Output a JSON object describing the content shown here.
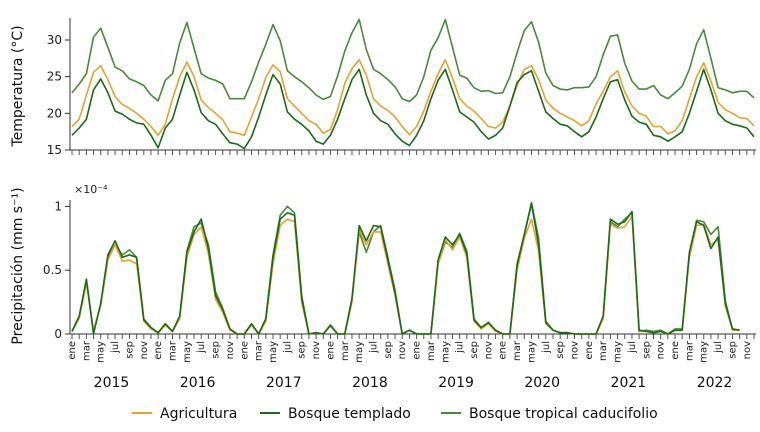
{
  "chart_data": [
    {
      "type": "line",
      "panel": "top",
      "ylabel": "Temperatura (°C)",
      "ylim": [
        15,
        33
      ],
      "yticks": [
        15,
        20,
        25,
        30
      ],
      "x_start": "ene 2015",
      "x_step": "month",
      "series": [
        {
          "name": "Agricultura",
          "color": "#e8a230",
          "values": [
            18.2,
            19.2,
            22.5,
            25.6,
            26.5,
            24.6,
            22.3,
            21.2,
            20.7,
            20.0,
            19.2,
            18.2,
            17.0,
            18.5,
            22.0,
            25.0,
            27.0,
            25.0,
            21.8,
            20.8,
            20.0,
            19.1,
            17.5,
            17.3,
            17.0,
            19.5,
            22.0,
            24.9,
            26.6,
            25.7,
            22.0,
            21.0,
            20.0,
            19.0,
            18.5,
            17.3,
            17.8,
            20.5,
            24.1,
            26.1,
            27.3,
            25.2,
            22.0,
            21.0,
            20.4,
            19.5,
            18.2,
            17.1,
            18.2,
            20.3,
            23.0,
            25.4,
            27.3,
            24.8,
            22.0,
            21.0,
            20.3,
            19.3,
            18.2,
            18.0,
            18.8,
            21.0,
            23.8,
            26.0,
            26.5,
            24.6,
            21.8,
            20.7,
            20.0,
            19.5,
            19.0,
            18.3,
            19.0,
            21.3,
            23.0,
            25.0,
            25.8,
            22.9,
            21.0,
            20.0,
            19.6,
            18.2,
            18.2,
            17.2,
            17.6,
            19.0,
            22.0,
            25.0,
            26.9,
            24.4,
            21.5,
            20.5,
            20.0,
            19.4,
            19.3,
            18.3
          ]
        },
        {
          "name": "Bosque templado",
          "color": "#1b6b1b",
          "values": [
            17.0,
            18.0,
            19.2,
            23.2,
            24.7,
            22.8,
            20.3,
            19.9,
            19.2,
            18.7,
            18.5,
            17.0,
            15.3,
            18.0,
            19.2,
            22.5,
            25.6,
            23.2,
            20.1,
            19.0,
            18.5,
            17.2,
            16.0,
            15.8,
            15.2,
            16.8,
            19.5,
            22.5,
            25.3,
            24.0,
            20.2,
            19.2,
            18.5,
            17.6,
            16.2,
            15.8,
            17.0,
            19.2,
            22.0,
            24.6,
            26.0,
            22.5,
            20.0,
            19.0,
            18.5,
            17.2,
            16.2,
            15.6,
            17.0,
            19.0,
            22.0,
            24.5,
            26.0,
            23.2,
            20.2,
            19.5,
            18.8,
            17.5,
            16.5,
            17.0,
            18.0,
            21.0,
            24.2,
            25.3,
            25.8,
            23.0,
            20.2,
            19.3,
            18.5,
            18.3,
            17.5,
            16.8,
            17.5,
            19.5,
            22.0,
            24.3,
            24.6,
            21.8,
            19.6,
            18.8,
            18.5,
            17.0,
            16.8,
            16.2,
            16.8,
            17.5,
            20.0,
            23.0,
            26.0,
            23.2,
            20.0,
            19.0,
            18.5,
            18.3,
            18.0,
            16.8
          ]
        },
        {
          "name": "Bosque tropical caducifolio",
          "color": "#4a8a3c",
          "values": [
            22.8,
            24.0,
            25.4,
            30.4,
            31.6,
            29.0,
            26.3,
            25.8,
            24.7,
            24.3,
            23.8,
            22.5,
            21.7,
            24.5,
            25.4,
            29.6,
            32.4,
            28.9,
            25.4,
            24.8,
            24.5,
            24.0,
            22.0,
            22.0,
            22.0,
            24.3,
            27.0,
            29.4,
            32.1,
            29.9,
            25.8,
            25.0,
            24.3,
            23.5,
            22.5,
            21.9,
            22.3,
            25.1,
            28.5,
            31.0,
            32.8,
            28.7,
            26.0,
            25.4,
            24.6,
            23.6,
            22.0,
            21.6,
            22.5,
            25.0,
            28.6,
            30.3,
            32.8,
            29.0,
            25.2,
            24.8,
            23.5,
            23.0,
            23.1,
            22.7,
            22.8,
            25.0,
            28.3,
            31.3,
            32.5,
            29.7,
            25.5,
            23.8,
            23.3,
            23.2,
            23.5,
            23.5,
            23.6,
            25.0,
            28.0,
            30.5,
            30.7,
            26.8,
            24.4,
            23.3,
            23.3,
            23.8,
            22.5,
            22.0,
            22.8,
            23.7,
            26.0,
            29.5,
            31.4,
            27.5,
            23.5,
            23.2,
            22.8,
            23.0,
            23.0,
            22.1
          ]
        }
      ]
    },
    {
      "type": "line",
      "panel": "bottom",
      "ylabel": "Precipitación (mm s⁻¹)",
      "scale_label": "×10⁻⁴",
      "ylim": [
        0,
        1.05
      ],
      "yticks": [
        0,
        0.5,
        1
      ],
      "ytick_labels": [
        "0",
        "0.5",
        "1"
      ],
      "x_start": "ene 2015",
      "x_step": "month",
      "series": [
        {
          "name": "Agricultura",
          "color": "#e8a230",
          "values": [
            0.02,
            0.12,
            0.4,
            0.03,
            0.22,
            0.58,
            0.7,
            0.57,
            0.58,
            0.55,
            0.1,
            0.04,
            0.01,
            0.07,
            0.02,
            0.12,
            0.6,
            0.78,
            0.84,
            0.63,
            0.27,
            0.17,
            0.03,
            0.0,
            0.0,
            0.07,
            0.0,
            0.1,
            0.55,
            0.85,
            0.9,
            0.88,
            0.25,
            0.0,
            0.01,
            0.0,
            0.06,
            0.0,
            0.0,
            0.25,
            0.82,
            0.7,
            0.8,
            0.8,
            0.55,
            0.3,
            0.0,
            0.03,
            0.0,
            0.0,
            0.0,
            0.55,
            0.74,
            0.66,
            0.76,
            0.6,
            0.1,
            0.04,
            0.08,
            0.02,
            0.0,
            0.0,
            0.5,
            0.75,
            0.9,
            0.65,
            0.08,
            0.03,
            0.01,
            0.01,
            0.0,
            0.0,
            0.0,
            0.0,
            0.12,
            0.86,
            0.83,
            0.84,
            0.92,
            0.02,
            0.02,
            0.01,
            0.02,
            0.0,
            0.03,
            0.03,
            0.6,
            0.85,
            0.86,
            0.7,
            0.74,
            0.22,
            0.03,
            0.03
          ]
        },
        {
          "name": "Bosque templado",
          "color": "#1b6b1b",
          "values": [
            0.02,
            0.14,
            0.43,
            0.0,
            0.24,
            0.62,
            0.73,
            0.6,
            0.62,
            0.6,
            0.11,
            0.05,
            0.01,
            0.08,
            0.02,
            0.14,
            0.64,
            0.8,
            0.9,
            0.67,
            0.3,
            0.19,
            0.04,
            0.0,
            0.0,
            0.08,
            0.0,
            0.12,
            0.6,
            0.9,
            0.95,
            0.93,
            0.28,
            0.0,
            0.01,
            0.0,
            0.07,
            0.0,
            0.0,
            0.28,
            0.85,
            0.73,
            0.85,
            0.84,
            0.58,
            0.32,
            0.0,
            0.03,
            0.0,
            0.0,
            0.0,
            0.58,
            0.76,
            0.7,
            0.78,
            0.63,
            0.11,
            0.05,
            0.09,
            0.03,
            0.0,
            0.0,
            0.54,
            0.78,
            1.02,
            0.7,
            0.09,
            0.03,
            0.01,
            0.01,
            0.0,
            0.0,
            0.0,
            0.0,
            0.14,
            0.9,
            0.86,
            0.88,
            0.96,
            0.03,
            0.02,
            0.01,
            0.02,
            0.0,
            0.03,
            0.03,
            0.64,
            0.88,
            0.85,
            0.67,
            0.76,
            0.24,
            0.04,
            0.03
          ]
        },
        {
          "name": "Bosque tropical caducifolio",
          "color": "#4a8a3c",
          "values": [
            0.02,
            0.13,
            0.42,
            0.02,
            0.23,
            0.6,
            0.7,
            0.62,
            0.66,
            0.6,
            0.12,
            0.05,
            0.01,
            0.08,
            0.02,
            0.13,
            0.65,
            0.84,
            0.87,
            0.7,
            0.33,
            0.2,
            0.04,
            0.0,
            0.0,
            0.08,
            0.0,
            0.12,
            0.62,
            0.93,
            1.0,
            0.95,
            0.3,
            0.0,
            0.01,
            0.0,
            0.07,
            0.0,
            0.0,
            0.27,
            0.8,
            0.64,
            0.8,
            0.85,
            0.6,
            0.34,
            0.0,
            0.03,
            0.0,
            0.0,
            0.0,
            0.55,
            0.72,
            0.68,
            0.79,
            0.65,
            0.12,
            0.05,
            0.09,
            0.03,
            0.0,
            0.0,
            0.55,
            0.78,
            1.03,
            0.75,
            0.1,
            0.03,
            0.01,
            0.01,
            0.0,
            0.0,
            0.0,
            0.0,
            0.13,
            0.88,
            0.84,
            0.9,
            0.95,
            0.02,
            0.03,
            0.02,
            0.03,
            0.0,
            0.04,
            0.04,
            0.63,
            0.89,
            0.88,
            0.78,
            0.84,
            0.26,
            0.03,
            0.03
          ]
        }
      ]
    }
  ],
  "x_axis": {
    "month_labels": [
      "ene",
      "mar",
      "may",
      "jul",
      "sep",
      "nov"
    ],
    "years": [
      "2015",
      "2016",
      "2017",
      "2018",
      "2019",
      "2020",
      "2021",
      "2022"
    ]
  },
  "legend": {
    "items": [
      {
        "label": "Agricultura",
        "color": "#e8a230"
      },
      {
        "label": "Bosque templado",
        "color": "#1b6b1b"
      },
      {
        "label": "Bosque tropical caducifolio",
        "color": "#4a8a3c"
      }
    ]
  }
}
